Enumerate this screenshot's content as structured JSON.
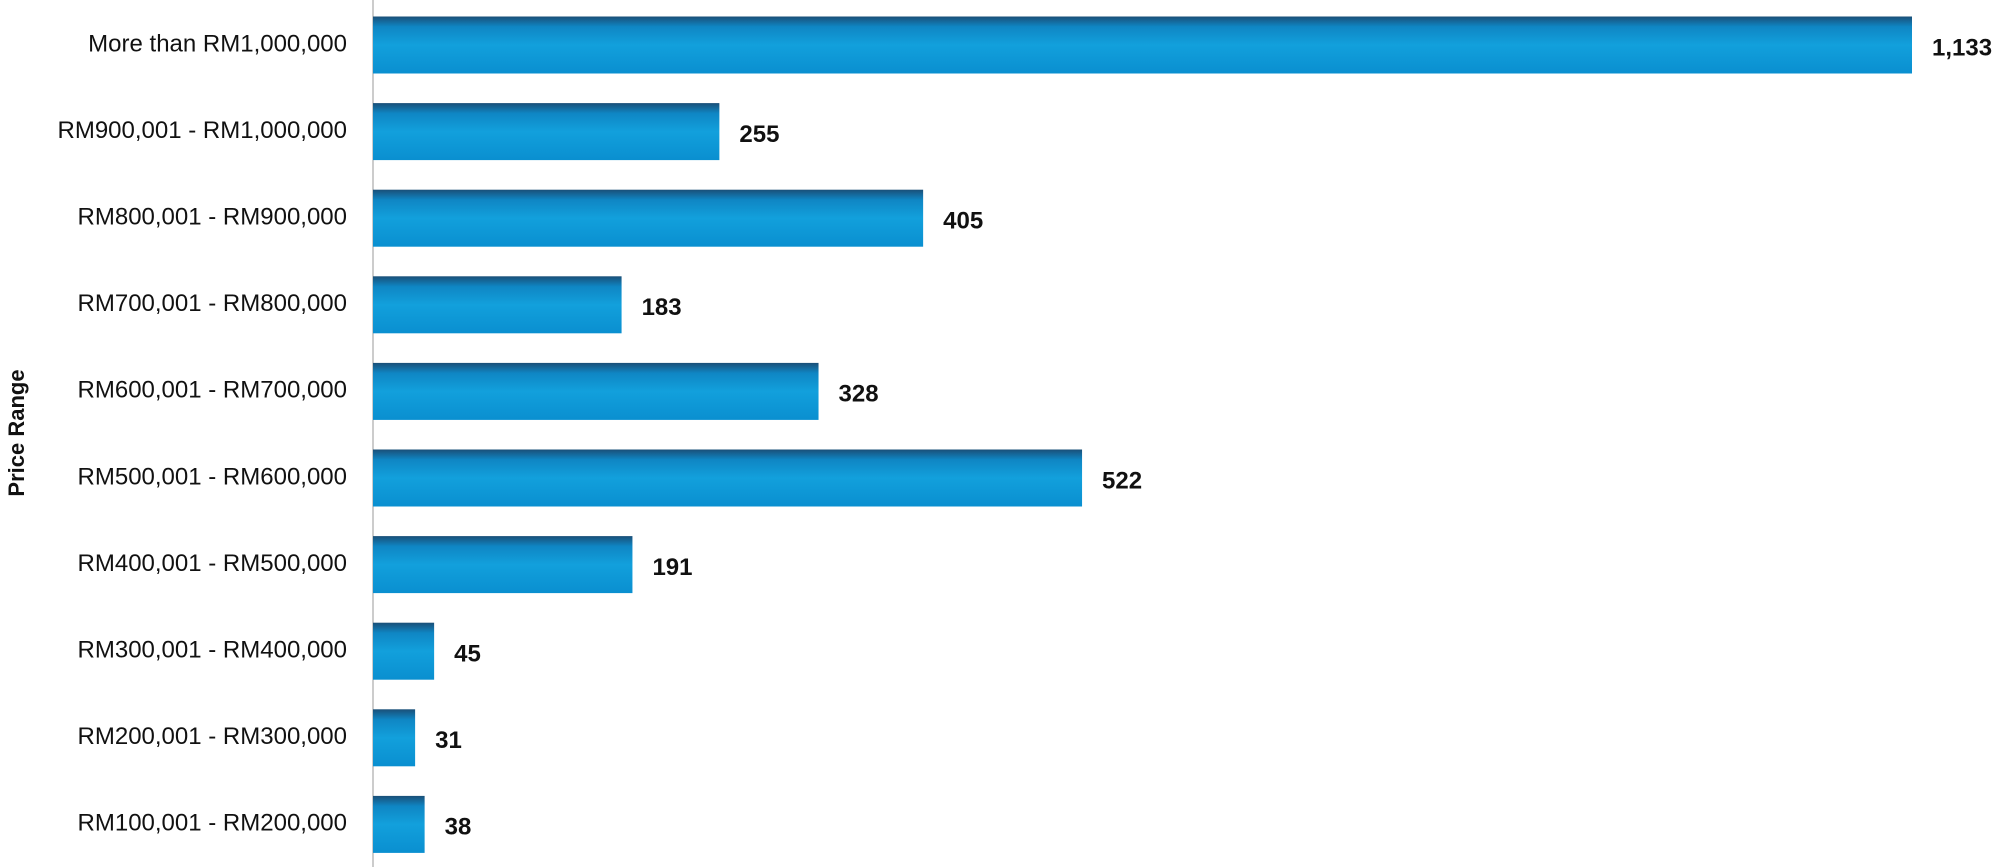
{
  "chart_data": {
    "type": "bar",
    "orientation": "horizontal",
    "y_axis_label": "Price Range",
    "categories": [
      "More than RM1,000,000",
      "RM900,001 - RM1,000,000",
      "RM800,001 - RM900,000",
      "RM700,001 - RM800,000",
      "RM600,001 - RM700,000",
      "RM500,001 - RM600,000",
      "RM400,001 - RM500,000",
      "RM300,001 - RM400,000",
      "RM200,001 - RM300,000",
      "RM100,001 - RM200,000"
    ],
    "values": [
      1133,
      255,
      405,
      183,
      328,
      522,
      191,
      45,
      31,
      38
    ],
    "value_labels": [
      "1,133",
      "255",
      "405",
      "183",
      "328",
      "522",
      "191",
      "45",
      "31",
      "38"
    ],
    "color": "#12a0dc"
  }
}
